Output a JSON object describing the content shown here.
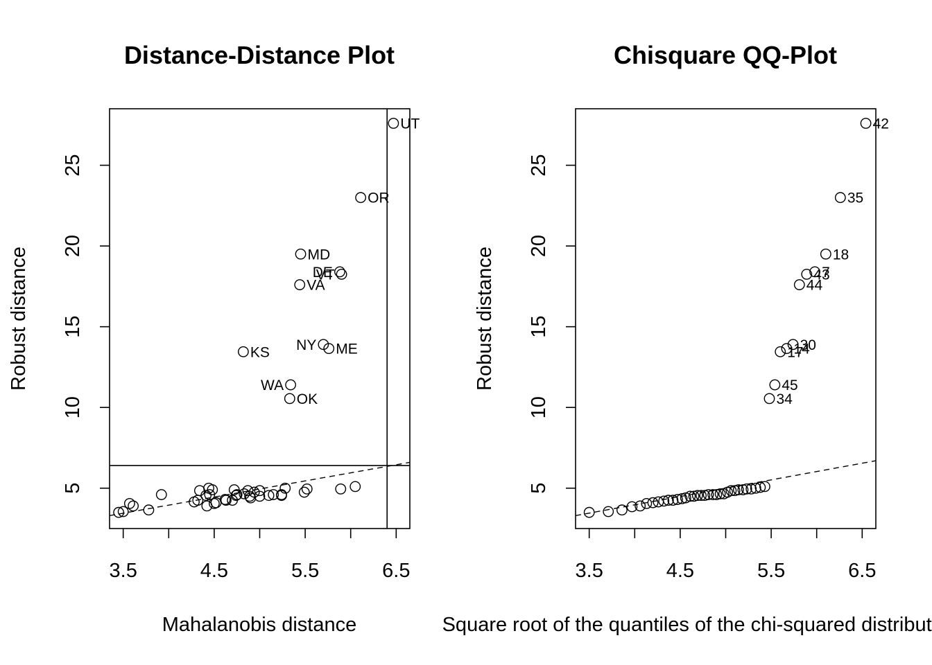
{
  "chart_data": [
    {
      "type": "scatter",
      "title": "Distance-Distance Plot",
      "xlabel": "Mahalanobis distance",
      "ylabel": "Robust distance",
      "xlim": [
        3.35,
        6.65
      ],
      "ylim": [
        2.5,
        28.5
      ],
      "xticks": [
        3.5,
        4.5,
        5.5,
        6.5
      ],
      "yticks": [
        5,
        10,
        15,
        20,
        25
      ],
      "cutoff_x": 6.4,
      "cutoff_y": 6.4,
      "reference_line": {
        "style": "dashed",
        "from": [
          3.35,
          3.3
        ],
        "to": [
          6.65,
          6.6
        ]
      },
      "points": [
        {
          "x": 3.45,
          "y": 3.5
        },
        {
          "x": 3.5,
          "y": 3.55
        },
        {
          "x": 3.57,
          "y": 4.05
        },
        {
          "x": 3.61,
          "y": 3.9
        },
        {
          "x": 3.78,
          "y": 3.65
        },
        {
          "x": 3.92,
          "y": 4.6
        },
        {
          "x": 4.28,
          "y": 4.15
        },
        {
          "x": 4.32,
          "y": 4.25
        },
        {
          "x": 4.34,
          "y": 4.85
        },
        {
          "x": 4.41,
          "y": 4.55
        },
        {
          "x": 4.42,
          "y": 3.9
        },
        {
          "x": 4.44,
          "y": 5.0
        },
        {
          "x": 4.45,
          "y": 4.6
        },
        {
          "x": 4.48,
          "y": 4.9
        },
        {
          "x": 4.5,
          "y": 4.05
        },
        {
          "x": 4.52,
          "y": 4.1
        },
        {
          "x": 4.62,
          "y": 4.3
        },
        {
          "x": 4.63,
          "y": 4.25
        },
        {
          "x": 4.7,
          "y": 4.25
        },
        {
          "x": 4.72,
          "y": 4.9
        },
        {
          "x": 4.74,
          "y": 4.55
        },
        {
          "x": 4.75,
          "y": 4.6
        },
        {
          "x": 4.83,
          "y": 4.65
        },
        {
          "x": 4.87,
          "y": 4.85
        },
        {
          "x": 4.89,
          "y": 4.5
        },
        {
          "x": 4.9,
          "y": 4.4
        },
        {
          "x": 4.94,
          "y": 4.75
        },
        {
          "x": 5.0,
          "y": 4.85
        },
        {
          "x": 5.0,
          "y": 4.5
        },
        {
          "x": 5.1,
          "y": 4.55
        },
        {
          "x": 5.15,
          "y": 4.6
        },
        {
          "x": 5.24,
          "y": 4.6
        },
        {
          "x": 5.24,
          "y": 4.55
        },
        {
          "x": 5.28,
          "y": 5.0
        },
        {
          "x": 5.49,
          "y": 4.75
        },
        {
          "x": 5.52,
          "y": 4.95
        },
        {
          "x": 5.89,
          "y": 4.95
        },
        {
          "x": 6.05,
          "y": 5.1
        },
        {
          "x": 6.47,
          "y": 27.6,
          "label": "UT",
          "pos": "right"
        },
        {
          "x": 6.11,
          "y": 23.0,
          "label": "OR",
          "pos": "right"
        },
        {
          "x": 5.45,
          "y": 19.5,
          "label": "MD",
          "pos": "right"
        },
        {
          "x": 5.88,
          "y": 18.4,
          "label": "DE",
          "pos": "left"
        },
        {
          "x": 5.9,
          "y": 18.25,
          "label": "VT",
          "pos": "left"
        },
        {
          "x": 5.44,
          "y": 17.6,
          "label": "VA",
          "pos": "right"
        },
        {
          "x": 5.7,
          "y": 13.9,
          "label": "NY",
          "pos": "left"
        },
        {
          "x": 5.76,
          "y": 13.65,
          "label": "ME",
          "pos": "right"
        },
        {
          "x": 4.82,
          "y": 13.45,
          "label": "KS",
          "pos": "right"
        },
        {
          "x": 5.34,
          "y": 11.4,
          "label": "WA",
          "pos": "left"
        },
        {
          "x": 5.33,
          "y": 10.55,
          "label": "OK",
          "pos": "right"
        }
      ]
    },
    {
      "type": "scatter",
      "title": "Chisquare QQ-Plot",
      "xlabel": "Square root of the quantiles of the chi-squared distribution",
      "ylabel": "Robust distance",
      "xlim": [
        3.35,
        6.65
      ],
      "ylim": [
        2.5,
        28.5
      ],
      "xticks": [
        3.5,
        4.5,
        5.5,
        6.5
      ],
      "yticks": [
        5,
        10,
        15,
        20,
        25
      ],
      "reference_line": {
        "style": "dashed",
        "from": [
          3.35,
          3.3
        ],
        "to": [
          6.65,
          6.7
        ]
      },
      "points": [
        {
          "x": 3.5,
          "y": 3.5
        },
        {
          "x": 3.71,
          "y": 3.55
        },
        {
          "x": 3.86,
          "y": 3.65
        },
        {
          "x": 3.97,
          "y": 3.85
        },
        {
          "x": 4.06,
          "y": 3.9
        },
        {
          "x": 4.13,
          "y": 4.05
        },
        {
          "x": 4.2,
          "y": 4.1
        },
        {
          "x": 4.26,
          "y": 4.15
        },
        {
          "x": 4.32,
          "y": 4.2
        },
        {
          "x": 4.37,
          "y": 4.25
        },
        {
          "x": 4.42,
          "y": 4.25
        },
        {
          "x": 4.47,
          "y": 4.3
        },
        {
          "x": 4.52,
          "y": 4.35
        },
        {
          "x": 4.56,
          "y": 4.4
        },
        {
          "x": 4.61,
          "y": 4.5
        },
        {
          "x": 4.65,
          "y": 4.5
        },
        {
          "x": 4.69,
          "y": 4.55
        },
        {
          "x": 4.73,
          "y": 4.55
        },
        {
          "x": 4.77,
          "y": 4.55
        },
        {
          "x": 4.81,
          "y": 4.6
        },
        {
          "x": 4.86,
          "y": 4.6
        },
        {
          "x": 4.9,
          "y": 4.6
        },
        {
          "x": 4.94,
          "y": 4.65
        },
        {
          "x": 4.98,
          "y": 4.65
        },
        {
          "x": 5.02,
          "y": 4.75
        },
        {
          "x": 5.06,
          "y": 4.85
        },
        {
          "x": 5.1,
          "y": 4.85
        },
        {
          "x": 5.14,
          "y": 4.9
        },
        {
          "x": 5.19,
          "y": 4.9
        },
        {
          "x": 5.23,
          "y": 4.95
        },
        {
          "x": 5.28,
          "y": 4.95
        },
        {
          "x": 5.33,
          "y": 5.0
        },
        {
          "x": 5.38,
          "y": 5.05
        },
        {
          "x": 5.43,
          "y": 5.1
        },
        {
          "x": 5.48,
          "y": 10.55,
          "label": "34",
          "pos": "right"
        },
        {
          "x": 5.54,
          "y": 11.4,
          "label": "45",
          "pos": "right"
        },
        {
          "x": 5.6,
          "y": 13.45,
          "label": "17",
          "pos": "right"
        },
        {
          "x": 5.67,
          "y": 13.65,
          "label": "14",
          "pos": "right"
        },
        {
          "x": 5.74,
          "y": 13.9,
          "label": "30",
          "pos": "right"
        },
        {
          "x": 5.81,
          "y": 17.6,
          "label": "44",
          "pos": "right"
        },
        {
          "x": 5.89,
          "y": 18.25,
          "label": "43",
          "pos": "right"
        },
        {
          "x": 5.98,
          "y": 18.4,
          "label": "7",
          "pos": "right"
        },
        {
          "x": 6.1,
          "y": 19.5,
          "label": "18",
          "pos": "right"
        },
        {
          "x": 6.26,
          "y": 23.0,
          "label": "35",
          "pos": "right"
        },
        {
          "x": 6.54,
          "y": 27.6,
          "label": "42",
          "pos": "right"
        }
      ]
    }
  ]
}
